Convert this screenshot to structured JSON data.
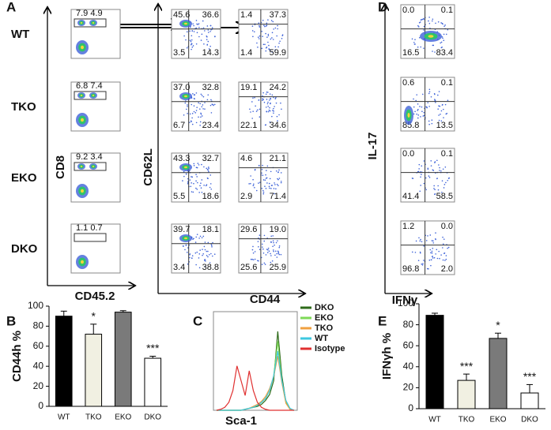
{
  "panel_labels": [
    "A",
    "B",
    "C",
    "D",
    "E"
  ],
  "panel_a": {
    "rows": [
      "WT",
      "TKO",
      "EKO",
      "DKO"
    ],
    "gate_axis_y": "CD8",
    "gate_axis_x": "CD45.2",
    "quad_axis_y": "CD62L",
    "quad_axis_x": "CD44",
    "gates": [
      "7.9 4.9",
      "6.8 7.4",
      "9.2 3.4",
      "1.1 0.7"
    ],
    "quadrants_1": [
      [
        "45.6",
        "36.6",
        "3.5",
        "14.3"
      ],
      [
        "37.0",
        "32.8",
        "6.7",
        "23.4"
      ],
      [
        "43.3",
        "32.7",
        "5.5",
        "18.6"
      ],
      [
        "39.7",
        "18.1",
        "3.4",
        "38.8"
      ]
    ],
    "quadrants_2": [
      [
        "1.4",
        "37.3",
        "1.4",
        "59.9"
      ],
      [
        "19.1",
        "24.2",
        "22.1",
        "34.6"
      ],
      [
        "4.6",
        "21.1",
        "2.9",
        "71.4"
      ],
      [
        "29.6",
        "19.0",
        "25.6",
        "25.9"
      ]
    ]
  },
  "panel_d": {
    "axis_y": "IL-17",
    "axis_x": "IFNγ",
    "quadrants": [
      [
        "0.0",
        "0.1",
        "16.5",
        "83.4"
      ],
      [
        "0.6",
        "0.1",
        "85.8",
        "13.5"
      ],
      [
        "0.0",
        "0.1",
        "41.4",
        "58.5"
      ],
      [
        "1.2",
        "0.0",
        "96.8",
        "2.0"
      ]
    ]
  },
  "chart_data": [
    {
      "type": "bar",
      "ylabel": "CD44h %",
      "categories": [
        "WT",
        "TKO",
        "EKO",
        "DKO"
      ],
      "values": [
        90,
        72,
        94,
        48
      ],
      "errors": [
        5,
        10,
        1.5,
        2
      ],
      "colors": [
        "#000000",
        "#f1f0e2",
        "#7a7a7a",
        "#ffffff"
      ],
      "annotations": [
        null,
        "*",
        null,
        "***"
      ],
      "ylim": [
        0,
        100
      ],
      "yticks": [
        0,
        20,
        40,
        60,
        80,
        100
      ]
    },
    {
      "type": "line",
      "xlabel": "Sca-1",
      "categories": [
        null,
        null,
        null,
        null,
        null,
        null,
        null,
        null,
        null,
        null,
        null,
        null,
        null,
        null,
        null,
        null,
        null,
        null,
        null,
        null
      ],
      "ylim": [
        0,
        100
      ],
      "series": [
        {
          "name": "DKO",
          "color": "#2e6b1a",
          "values": [
            0,
            0,
            0,
            0,
            0,
            0,
            0,
            1,
            2,
            3,
            4,
            6,
            10,
            16,
            30,
            80,
            35,
            8,
            1,
            0
          ]
        },
        {
          "name": "EKO",
          "color": "#7ed957",
          "values": [
            0,
            0,
            0,
            0,
            0,
            0,
            0,
            1,
            2,
            3,
            5,
            8,
            12,
            20,
            35,
            70,
            30,
            8,
            1,
            0
          ]
        },
        {
          "name": "TKO",
          "color": "#f0a040",
          "values": [
            0,
            0,
            0,
            0,
            0,
            0,
            0,
            1,
            2,
            4,
            6,
            9,
            14,
            22,
            34,
            55,
            28,
            7,
            1,
            0
          ]
        },
        {
          "name": "WT",
          "color": "#3cc8e0",
          "values": [
            0,
            0,
            0,
            0,
            0,
            0,
            0,
            1,
            2,
            3,
            5,
            8,
            12,
            20,
            35,
            60,
            30,
            10,
            2,
            0
          ]
        },
        {
          "name": "Isotype",
          "color": "#e03030",
          "values": [
            0,
            1,
            3,
            8,
            20,
            45,
            30,
            15,
            40,
            20,
            8,
            3,
            1,
            0,
            0,
            0,
            0,
            0,
            0,
            0
          ]
        }
      ]
    },
    {
      "type": "bar",
      "ylabel": "IFNγh %",
      "categories": [
        "WT",
        "TKO",
        "EKO",
        "DKO"
      ],
      "values": [
        89,
        27,
        67,
        15
      ],
      "errors": [
        2,
        6,
        5,
        8
      ],
      "colors": [
        "#000000",
        "#f1f0e2",
        "#7a7a7a",
        "#ffffff"
      ],
      "annotations": [
        null,
        "***",
        "*",
        "***"
      ],
      "ylim": [
        0,
        100
      ],
      "yticks": [
        0,
        20,
        40,
        60,
        80,
        100
      ]
    }
  ]
}
